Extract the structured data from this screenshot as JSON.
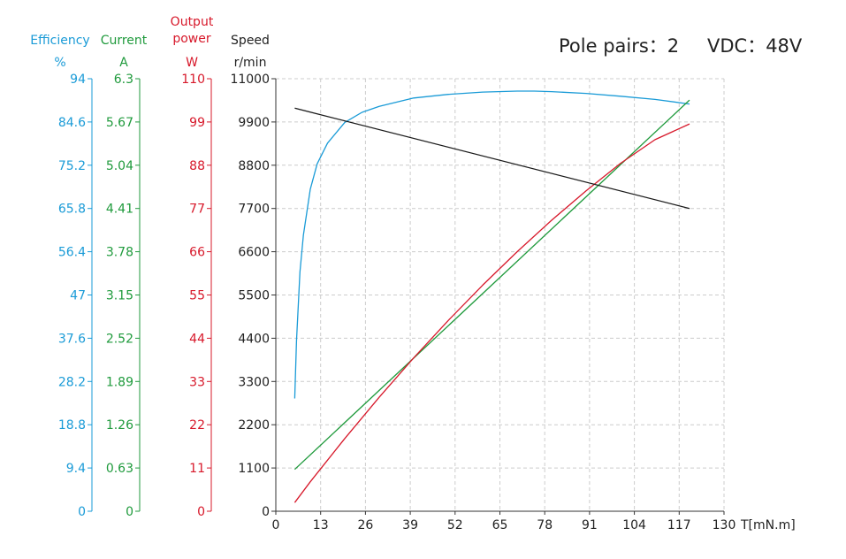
{
  "chart_data": {
    "type": "line",
    "annotation": {
      "pole_pairs": "Pole pairs：2",
      "vdc": "VDC：48V"
    },
    "colors": {
      "efficiency": "#1a9bd7",
      "current": "#1f9a3c",
      "output_power": "#d7182a",
      "speed": "#1a1a1a",
      "grid": "#cccccc",
      "axis": "#333333"
    },
    "grid": true,
    "x_axis": {
      "label": "T[mN.m]",
      "range": [
        0,
        130
      ],
      "ticks": [
        "0",
        "13",
        "26",
        "39",
        "52",
        "65",
        "78",
        "91",
        "104",
        "117",
        "130"
      ]
    },
    "y_axes": [
      {
        "key": "efficiency",
        "title": "Efficiency",
        "unit": "%",
        "range": [
          0,
          94
        ],
        "ticks": [
          "0",
          "9.4",
          "18.8",
          "28.2",
          "37.6",
          "47",
          "56.4",
          "65.8",
          "75.2",
          "84.6",
          "94"
        ]
      },
      {
        "key": "current",
        "title": "Current",
        "unit": "A",
        "range": [
          0,
          6.3
        ],
        "ticks": [
          "0",
          "0.63",
          "1.26",
          "1.89",
          "2.52",
          "3.15",
          "3.78",
          "4.41",
          "5.04",
          "5.67",
          "6.3"
        ]
      },
      {
        "key": "output_power",
        "title": "Output power",
        "title_lines": [
          "Output",
          "power"
        ],
        "unit": "W",
        "range": [
          0,
          110
        ],
        "ticks": [
          "0",
          "11",
          "22",
          "33",
          "44",
          "55",
          "66",
          "77",
          "88",
          "99",
          "110"
        ]
      },
      {
        "key": "speed",
        "title": "Speed",
        "unit": "r/min",
        "range": [
          0,
          11000
        ],
        "ticks": [
          "0",
          "1100",
          "2200",
          "3300",
          "4400",
          "5500",
          "6600",
          "7700",
          "8800",
          "9900",
          "11000"
        ]
      }
    ],
    "series": [
      {
        "name": "Efficiency",
        "axis": "efficiency",
        "x": [
          5.5,
          6,
          7,
          8,
          10,
          12,
          15,
          20,
          25,
          30,
          40,
          50,
          60,
          70,
          75,
          80,
          90,
          100,
          110,
          120
        ],
        "y": [
          24.5,
          37,
          52,
          60,
          70,
          75.5,
          80,
          84.5,
          86.7,
          88,
          89.8,
          90.6,
          91.1,
          91.3,
          91.3,
          91.2,
          90.8,
          90.2,
          89.5,
          88.5
        ]
      },
      {
        "name": "Current",
        "axis": "current",
        "x": [
          5.5,
          120
        ],
        "y": [
          0.61,
          5.99
        ]
      },
      {
        "name": "Output power",
        "axis": "output_power",
        "x": [
          5.5,
          10,
          20,
          30,
          40,
          50,
          60,
          70,
          80,
          90,
          100,
          110,
          120
        ],
        "y": [
          2.2,
          7.5,
          18.5,
          29,
          39,
          48.5,
          57.5,
          66,
          74,
          81.5,
          88.5,
          94.5,
          98.5
        ]
      },
      {
        "name": "Speed",
        "axis": "speed",
        "x": [
          5.5,
          120
        ],
        "y": [
          10250,
          7700
        ]
      }
    ]
  }
}
